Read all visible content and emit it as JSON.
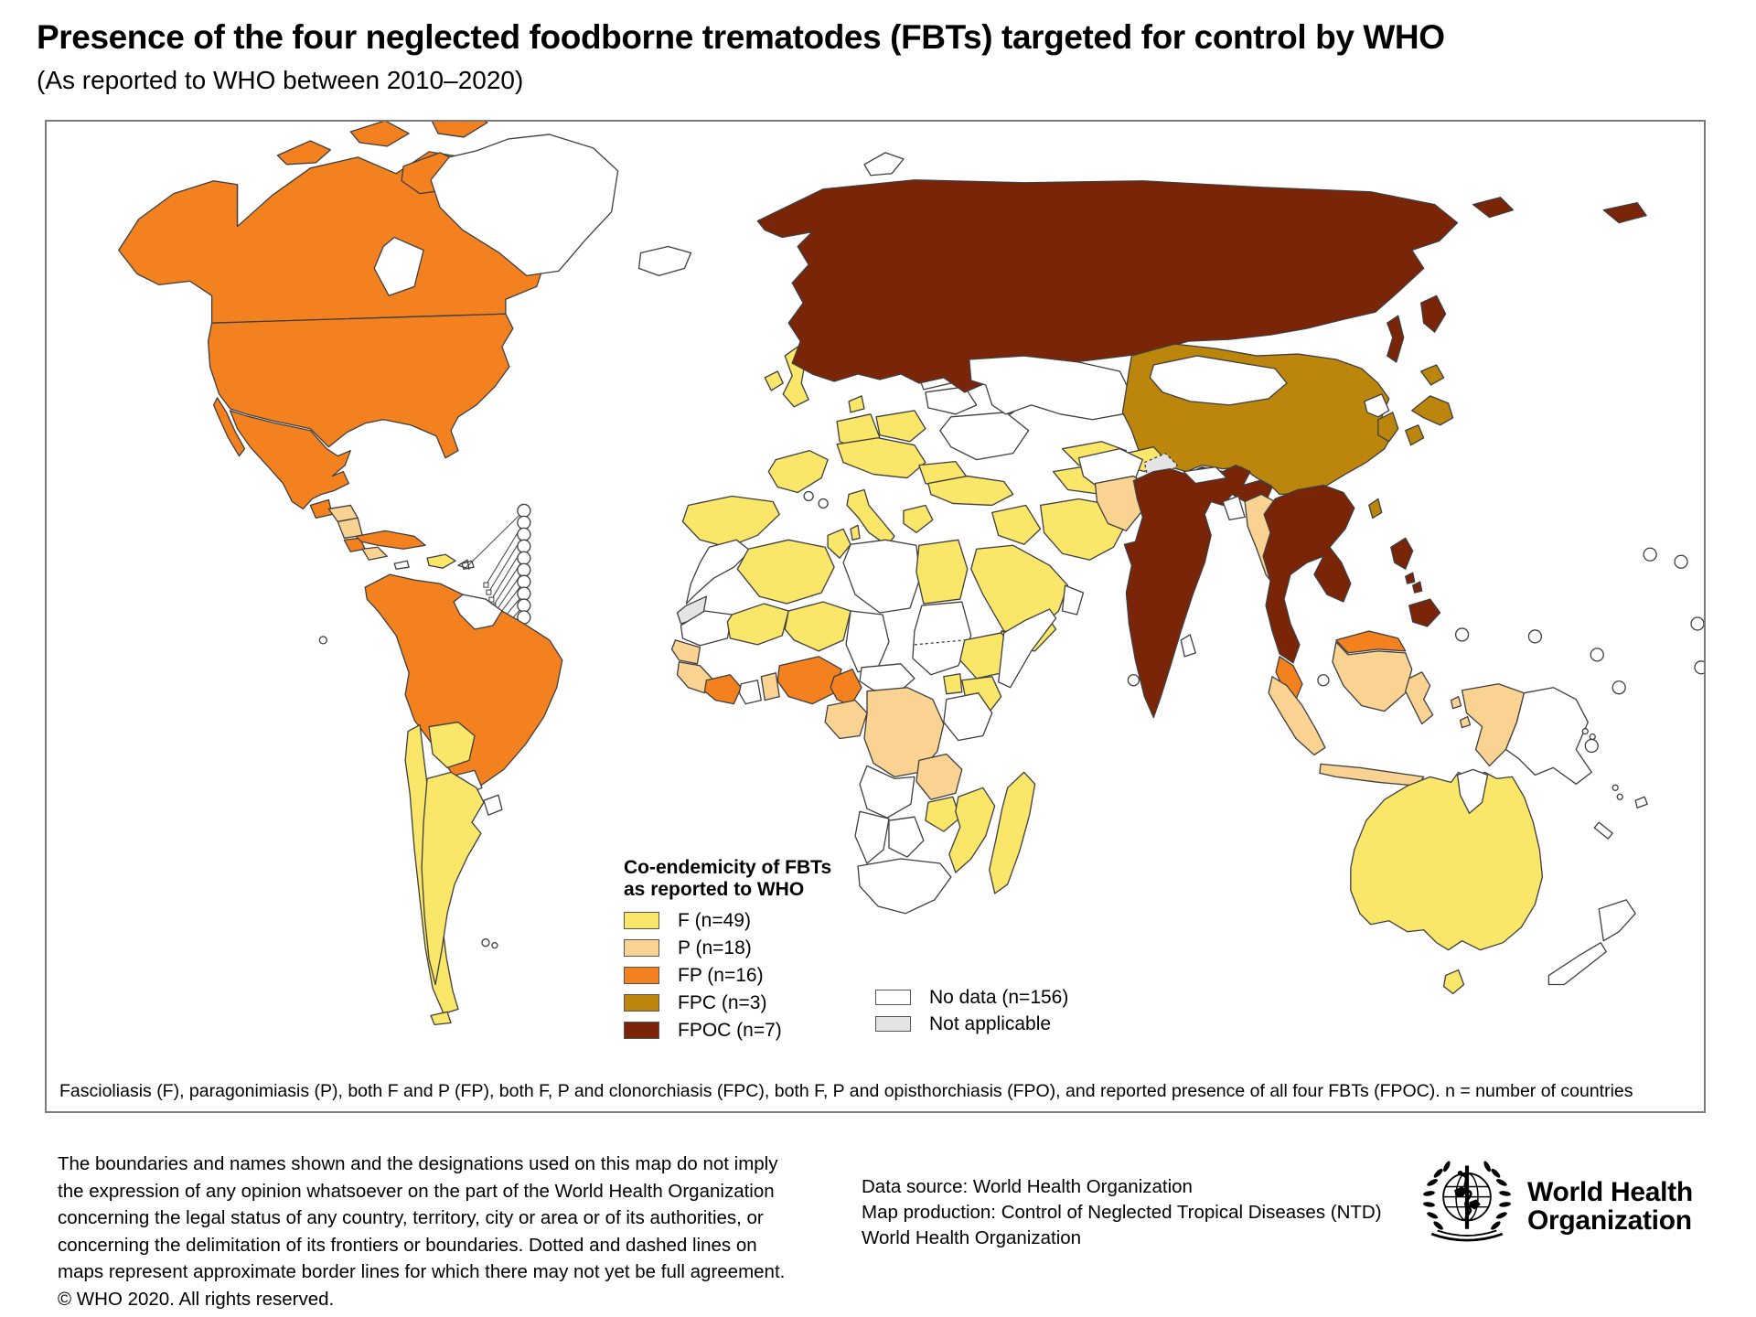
{
  "title": "Presence of the four neglected foodborne trematodes (FBTs) targeted for control by WHO",
  "subtitle": "(As reported to WHO between 2010–2020)",
  "legend": {
    "title_line1": "Co-endemicity of FBTs",
    "title_line2": "as reported to WHO",
    "items": [
      {
        "key": "F",
        "label": "F (n=49)",
        "color": "#FAE668"
      },
      {
        "key": "P",
        "label": "P (n=18)",
        "color": "#FAD291"
      },
      {
        "key": "FP",
        "label": "FP (n=16)",
        "color": "#F48120"
      },
      {
        "key": "FPC",
        "label": "FPC (n=3)",
        "color": "#BC860C"
      },
      {
        "key": "FPOC",
        "label": "FPOC (n=7)",
        "color": "#7B2508"
      }
    ],
    "extra_items": [
      {
        "key": "NO_DATA",
        "label": "No data (n=156)",
        "color": "#FFFFFF"
      },
      {
        "key": "NOT_APPLICABLE",
        "label": "Not applicable",
        "color": "#E4E4E4"
      }
    ]
  },
  "footnote": "Fascioliasis (F), paragonimiasis (P), both F and P (FP), both F, P and clonorchiasis (FPC), both F, P and opisthorchiasis (FPO), and reported presence of all four FBTs (FPOC). n = number of countries",
  "disclaimer_lines": [
    "The boundaries and names shown and the designations used on this map do not imply",
    "the expression of any opinion whatsoever on the part of the World Health Organization",
    "concerning the legal status of any country, territory, city or area or of its authorities, or",
    "concerning the delimitation of its frontiers or boundaries. Dotted and dashed lines on",
    "maps represent approximate border lines for which there may not yet be full agreement.",
    "© WHO 2020. All rights reserved."
  ],
  "source_lines": [
    "Data source: World Health Organization",
    "Map production: Control of Neglected Tropical Diseases (NTD)",
    "World Health Organization"
  ],
  "logo": {
    "line1": "World Health",
    "line2": "Organization"
  },
  "map": {
    "border_color": "#3E3E3E",
    "regions": {
      "canada": "FP",
      "canada-islands": "FP",
      "usa": "FP",
      "mexico": "FP",
      "baja": "FP",
      "cuba": "FP",
      "guatemala": "FP",
      "costa-rica": "FP",
      "south-america-main": "FP",
      "cote-divoire": "FP",
      "nigeria": "FP",
      "cameroon": "FP",
      "malaysia-peninsular": "FP",
      "malaysia-borneo": "FP",
      "hispaniola": "F",
      "iberia": "F",
      "france": "F",
      "uk": "F",
      "ireland": "F",
      "germany": "F",
      "poland": "F",
      "central-europe": "F",
      "italy": "F",
      "sicily": "F",
      "sardinia": "F",
      "denmark": "F",
      "sweden": "F",
      "romania-bulgaria": "F",
      "greece": "F",
      "turkey": "F",
      "algeria": "F",
      "tunisia": "F",
      "egypt": "F",
      "mali": "F",
      "niger": "F",
      "ethiopia": "F",
      "kenya": "F",
      "uganda": "F",
      "mozambique": "F",
      "zimbabwe": "F",
      "madagascar": "F",
      "saudi-arabia": "F",
      "yemen": "F",
      "iraq": "F",
      "iran": "F",
      "turkmenistan": "F",
      "uzbekistan": "F",
      "kyrgyzstan-tajikistan": "F",
      "bolivia": "F",
      "chile": "F",
      "argentina": "F",
      "tierra-del-fuego": "F",
      "australia": "F",
      "tasmania": "F",
      "china": "FPC",
      "taiwan": "FPC",
      "south-korea": "FPC",
      "japan-hokkaido": "FPC",
      "japan-honshu": "FPC",
      "japan-kyushu": "FPC",
      "russia": "FPOC",
      "russia-chukotka": "FPOC",
      "russia-kamchatka": "FPOC",
      "russia-ne-islands": "FPOC",
      "sakhalin": "FPOC",
      "india": "FPOC",
      "southeast-asia": "FPOC",
      "philippines-luzon": "FPOC",
      "philippines-visayas": "FPOC",
      "philippines-mindanao": "FPOC",
      "honduras": "P",
      "nicaragua": "P",
      "panama": "P",
      "senegal-gambia": "P",
      "guinea-cluster": "P",
      "togo-benin": "P",
      "gabon-congo": "P",
      "drc": "P",
      "zambia": "P",
      "pakistan": "P",
      "myanmar": "P",
      "sumatra": "P",
      "java": "P",
      "kalimantan": "P",
      "sulawesi": "P",
      "west-papua": "P",
      "moluccas": "P",
      "greenland": "NO_DATA",
      "iceland": "NO_DATA",
      "svalbard": "NO_DATA",
      "hudson-bay": "NO_DATA",
      "norway": "NO_DATA",
      "finland": "NO_DATA",
      "baltics": "NO_DATA",
      "belarus": "NO_DATA",
      "ukraine": "NO_DATA",
      "kazakhstan": "NO_DATA",
      "mongolia": "NO_DATA",
      "afghanistan": "NO_DATA",
      "nepal": "NO_DATA",
      "bangladesh": "NO_DATA",
      "sri-lanka": "NO_DATA",
      "north-korea": "NO_DATA",
      "papua-new-guinea": "NO_DATA",
      "new-zealand-north": "NO_DATA",
      "new-zealand-south": "NO_DATA",
      "morocco": "NO_DATA",
      "mauritania": "NO_DATA",
      "libya": "NO_DATA",
      "chad": "NO_DATA",
      "sudan": "NO_DATA",
      "car": "NO_DATA",
      "ghana": "NO_DATA",
      "angola": "NO_DATA",
      "tanzania": "NO_DATA",
      "namibia": "NO_DATA",
      "botswana": "NO_DATA",
      "south-africa": "NO_DATA",
      "somalia": "NO_DATA",
      "oman": "NO_DATA",
      "guyanas": "NO_DATA",
      "paraguay": "NO_DATA",
      "uruguay": "NO_DATA",
      "jamaica": "NO_DATA",
      "puerto-rico": "NO_DATA",
      "fiji": "NO_DATA",
      "new-caledonia": "NO_DATA",
      "timor": "NO_DATA",
      "gulf-carpentaria": "NO_DATA",
      "western-sahara": "NOT_APPLICABLE",
      "kashmir": "NOT_APPLICABLE"
    }
  }
}
